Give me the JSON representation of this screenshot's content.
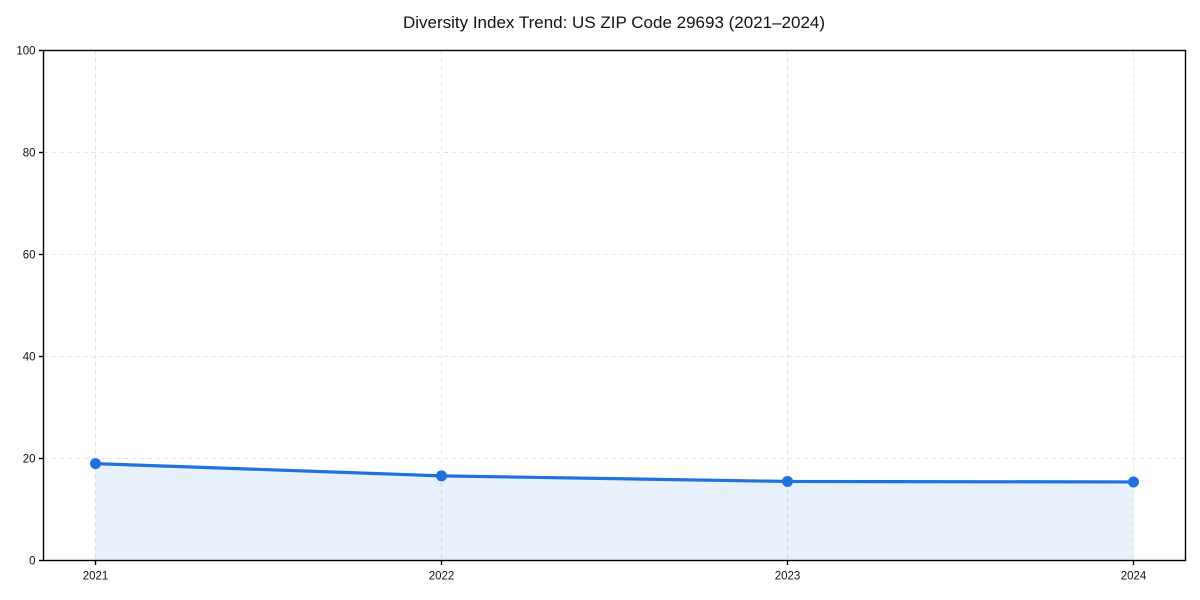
{
  "chart_data": {
    "type": "line",
    "title": "Diversity Index Trend: US ZIP Code 29693 (2021–2024)",
    "xlabel": "",
    "ylabel": "",
    "categories": [
      "2021",
      "2022",
      "2023",
      "2024"
    ],
    "series": [
      {
        "name": "Diversity Index",
        "values": [
          19.0,
          16.6,
          15.5,
          15.4
        ]
      }
    ],
    "ylim": [
      0,
      100
    ],
    "yticks": [
      0,
      20,
      40,
      60,
      80,
      100
    ],
    "grid": true,
    "grid_style": "dashed",
    "legend_position": "none",
    "area_under_line": true,
    "colors": {
      "line": "#2170e0",
      "marker": "#2170e0",
      "area_fill": "rgba(33, 112, 224, 0.10)",
      "grid": "#e5e5e5",
      "axis": "#000000",
      "text": "#111111",
      "background": "#ffffff"
    }
  }
}
